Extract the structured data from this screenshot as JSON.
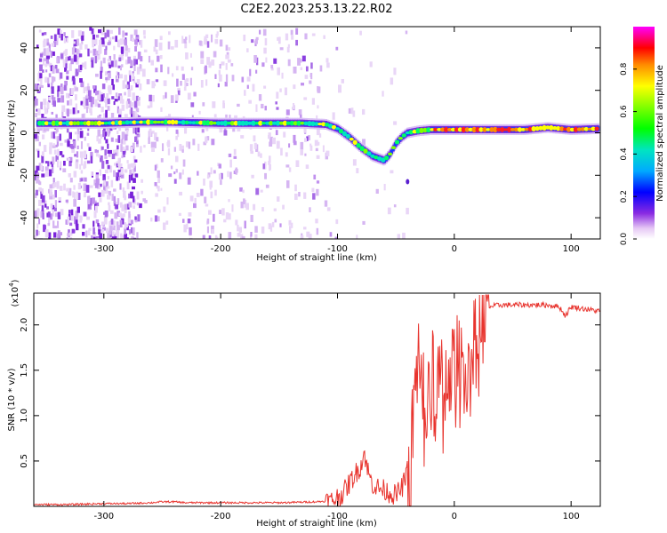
{
  "figure_title": "C2E2.2023.253.13.22.R02",
  "colorbar": {
    "label": "Normalized spectral amplitude",
    "ticks": [
      "0.0",
      "0.2",
      "0.4",
      "0.6",
      "0.8"
    ],
    "tick_values": [
      0.0,
      0.2,
      0.4,
      0.6,
      0.8
    ],
    "range": [
      0,
      1
    ]
  },
  "chart_data": [
    {
      "type": "heatmap",
      "title": "",
      "xlabel": "Height of straight line (km)",
      "ylabel": "Frequency (Hz)",
      "xlim": [
        -360,
        125
      ],
      "ylim": [
        -50,
        50
      ],
      "x_ticks": [
        -300,
        -200,
        -100,
        0,
        100
      ],
      "y_ticks": [
        -40,
        -20,
        0,
        20,
        40
      ],
      "x_tick_labels": [
        "-300",
        "-200",
        "-100",
        "0",
        "100"
      ],
      "y_tick_labels": [
        "-40",
        "-20",
        "0",
        "20",
        "40"
      ],
      "ridge": {
        "name": "",
        "x": [
          -355,
          -330,
          -300,
          -270,
          -240,
          -200,
          -160,
          -130,
          -110,
          -100,
          -90,
          -80,
          -70,
          -60,
          -55,
          -50,
          -45,
          -40,
          -30,
          -20,
          -10,
          0,
          20,
          40,
          60,
          80,
          100,
          125
        ],
        "y": [
          4.5,
          4.5,
          4.5,
          5,
          5,
          4.5,
          4.5,
          4.5,
          4,
          2,
          -2,
          -7,
          -11,
          -13,
          -10,
          -5,
          -2,
          0,
          1,
          1.5,
          1.5,
          1.5,
          1.5,
          1.5,
          1.5,
          2.5,
          1.5,
          2
        ]
      }
    },
    {
      "type": "line",
      "title": "",
      "xlabel": "Height of straight line (km)",
      "ylabel": "SNR (10 * v/v)",
      "y_multiplier": "(x10",
      "y_multiplier_exp": "4",
      "y_multiplier_close": ")",
      "xlim": [
        -360,
        125
      ],
      "ylim": [
        0,
        2.35
      ],
      "x_ticks": [
        -300,
        -200,
        -100,
        0,
        100
      ],
      "y_ticks": [
        0.5,
        1.0,
        1.5,
        2.0
      ],
      "x_tick_labels": [
        "-300",
        "-200",
        "-100",
        "0",
        "100"
      ],
      "y_tick_labels": [
        "0.5",
        "1.0",
        "1.5",
        "2.0"
      ],
      "series": [
        {
          "name": "",
          "color": "#e8342e",
          "x": [
            -360,
            -330,
            -300,
            -280,
            -260,
            -250,
            -240,
            -230,
            -200,
            -150,
            -120,
            -105,
            -100,
            -95,
            -90,
            -85,
            -80,
            -77,
            -75,
            -72,
            -70,
            -65,
            -60,
            -55,
            -50,
            -45,
            -42,
            -38,
            -35,
            -32,
            -30,
            -28,
            -25,
            -22,
            -20,
            -15,
            -10,
            -5,
            0,
            5,
            10,
            15,
            20,
            25,
            30,
            40,
            60,
            80,
            90,
            95,
            100,
            110,
            125
          ],
          "y": [
            0.02,
            0.02,
            0.03,
            0.03,
            0.04,
            0.05,
            0.05,
            0.04,
            0.04,
            0.04,
            0.05,
            0.06,
            0.1,
            0.15,
            0.25,
            0.35,
            0.45,
            0.6,
            0.45,
            0.3,
            0.25,
            0.2,
            0.18,
            0.15,
            0.12,
            0.2,
            0.3,
            0.5,
            1.0,
            1.5,
            1.8,
            1.3,
            1.2,
            1.35,
            1.4,
            1.45,
            1.3,
            1.5,
            1.55,
            1.6,
            1.55,
            1.75,
            1.95,
            2.1,
            2.2,
            2.22,
            2.22,
            2.22,
            2.2,
            2.1,
            2.2,
            2.18,
            2.15
          ]
        }
      ]
    }
  ]
}
